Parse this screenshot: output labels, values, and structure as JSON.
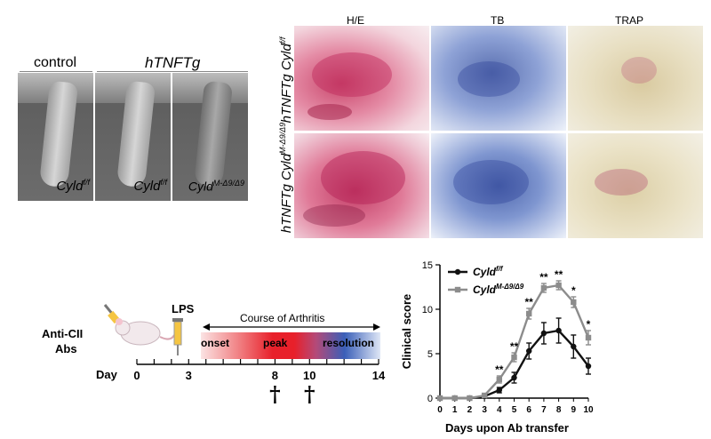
{
  "panel_a": {
    "control_header": "control",
    "htnf_header": "hTNFTg",
    "photo_labels": [
      {
        "base": "Cyld",
        "sup": "f/f"
      },
      {
        "base": "Cyld",
        "sup": "f/f"
      },
      {
        "base": "Cyld",
        "sup": "M-Δ9/Δ9"
      }
    ]
  },
  "panel_b": {
    "stains": [
      "H/E",
      "TB",
      "TRAP"
    ],
    "row1": {
      "prefix": "hTNFTg Cyld",
      "sup": "f/f"
    },
    "row2": {
      "prefix": "hTNFTg Cyld",
      "sup": "M-Δ9/Δ9"
    }
  },
  "panel_c": {
    "anti_cii_line1": "Anti-CII",
    "anti_cii_line2": "Abs",
    "lps": "LPS",
    "course": "Course of Arthritis",
    "phases": [
      "onset",
      "peak",
      "resolution"
    ],
    "day_label": "Day",
    "day_ticks": [
      0,
      3,
      8,
      10,
      14
    ],
    "death_marker": "†",
    "death_days": [
      8,
      10
    ]
  },
  "colors": {
    "series_ff": "#111111",
    "series_mut": "#8c8c8c",
    "onset_red": "#e8202a",
    "resolution_blue": "#3a5fb8"
  },
  "chart_data": {
    "type": "line",
    "xlabel": "Days upon Ab transfer",
    "ylabel": "Clinical score",
    "x": [
      0,
      1,
      2,
      3,
      4,
      5,
      6,
      7,
      8,
      9,
      10
    ],
    "ylim": [
      0,
      15
    ],
    "yticks": [
      0,
      5,
      10,
      15
    ],
    "series": [
      {
        "name": "Cyld",
        "sup": "f/f",
        "values": [
          0,
          0,
          0,
          0.2,
          0.9,
          2.3,
          5.3,
          7.3,
          7.6,
          5.8,
          3.6
        ],
        "err": [
          0,
          0,
          0,
          0.1,
          0.3,
          0.6,
          0.9,
          1.2,
          1.4,
          1.3,
          0.9
        ]
      },
      {
        "name": "Cyld",
        "sup": "M-Δ9/Δ9",
        "values": [
          0,
          0,
          0,
          0.3,
          2.1,
          4.6,
          9.5,
          12.4,
          12.7,
          10.8,
          6.8
        ],
        "err": [
          0,
          0,
          0,
          0.1,
          0.4,
          0.5,
          0.6,
          0.5,
          0.5,
          0.6,
          0.8
        ]
      }
    ],
    "significance": [
      {
        "x": 4,
        "label": "**"
      },
      {
        "x": 5,
        "label": "**"
      },
      {
        "x": 6,
        "label": "**"
      },
      {
        "x": 7,
        "label": "**"
      },
      {
        "x": 8,
        "label": "**"
      },
      {
        "x": 9,
        "label": "*"
      },
      {
        "x": 10,
        "label": "*"
      }
    ]
  }
}
